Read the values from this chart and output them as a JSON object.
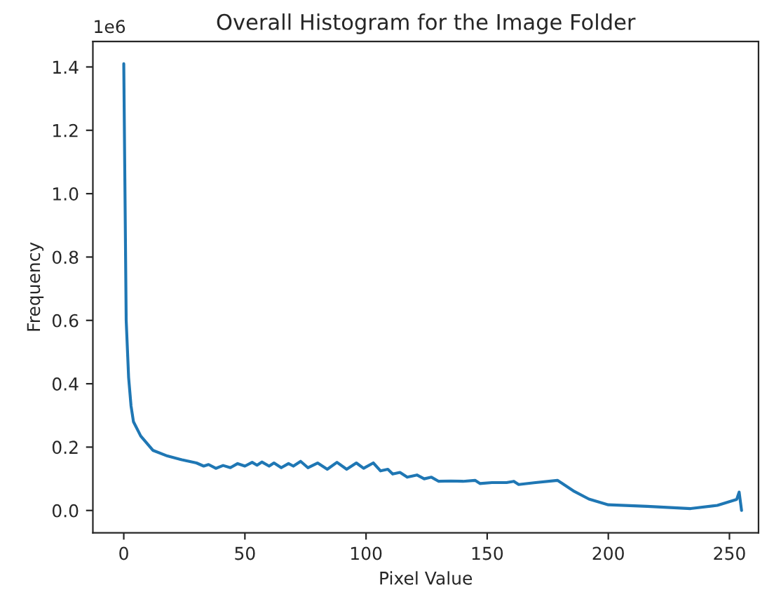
{
  "chart_data": {
    "type": "line",
    "title": "Overall Histogram for the Image Folder",
    "xlabel": "Pixel Value",
    "ylabel": "Frequency",
    "annotations": [
      "1e6"
    ],
    "x": [
      0,
      1,
      2,
      3,
      4,
      7,
      12,
      18,
      24,
      30,
      33,
      35,
      38,
      41,
      44,
      47,
      50,
      53,
      55,
      57,
      60,
      62,
      65,
      68,
      70,
      73,
      76,
      80,
      84,
      88,
      92,
      96,
      99,
      103,
      106,
      109,
      111,
      114,
      117,
      121,
      124,
      127,
      130,
      135,
      140,
      145,
      147,
      152,
      158,
      161,
      163,
      170,
      179,
      181,
      186,
      192,
      200,
      216,
      234,
      245,
      253,
      254,
      255
    ],
    "series": [
      {
        "color": "#1f77b4",
        "values": [
          1.41,
          0.6,
          0.42,
          0.33,
          0.28,
          0.235,
          0.19,
          0.172,
          0.16,
          0.15,
          0.14,
          0.145,
          0.133,
          0.142,
          0.135,
          0.148,
          0.14,
          0.152,
          0.143,
          0.153,
          0.14,
          0.15,
          0.135,
          0.148,
          0.14,
          0.155,
          0.135,
          0.15,
          0.13,
          0.152,
          0.13,
          0.15,
          0.133,
          0.15,
          0.125,
          0.13,
          0.115,
          0.12,
          0.105,
          0.112,
          0.1,
          0.105,
          0.092,
          0.093,
          0.092,
          0.095,
          0.085,
          0.088,
          0.088,
          0.092,
          0.082,
          0.088,
          0.095,
          0.085,
          0.06,
          0.036,
          0.018,
          0.013,
          0.006,
          0.016,
          0.035,
          0.058,
          0
        ]
      }
    ],
    "xlim": [
      -12.75,
      262
    ],
    "ylim": [
      -0.0705,
      1.4805
    ],
    "xticks": [
      0,
      50,
      100,
      150,
      200,
      250
    ],
    "yticks": [
      {
        "value": 0,
        "label": "0.0"
      },
      {
        "value": 0.2,
        "label": "0.2"
      },
      {
        "value": 0.4,
        "label": "0.4"
      },
      {
        "value": 0.6,
        "label": "0.6"
      },
      {
        "value": 0.8,
        "label": "0.8"
      },
      {
        "value": 1.0,
        "label": "1.0"
      },
      {
        "value": 1.2,
        "label": "1.2"
      },
      {
        "value": 1.4,
        "label": "1.4"
      }
    ],
    "grid": false,
    "legend": false,
    "marker": "none",
    "line_style": "solid"
  }
}
